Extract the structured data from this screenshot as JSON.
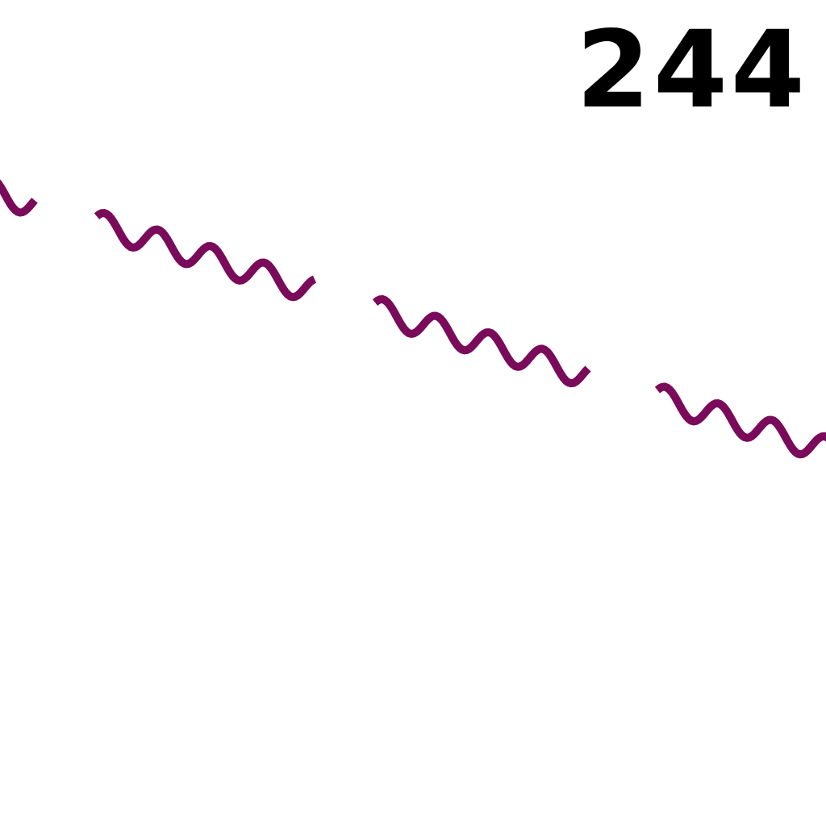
{
  "map": {
    "labels": [
      "244"
    ]
  }
}
